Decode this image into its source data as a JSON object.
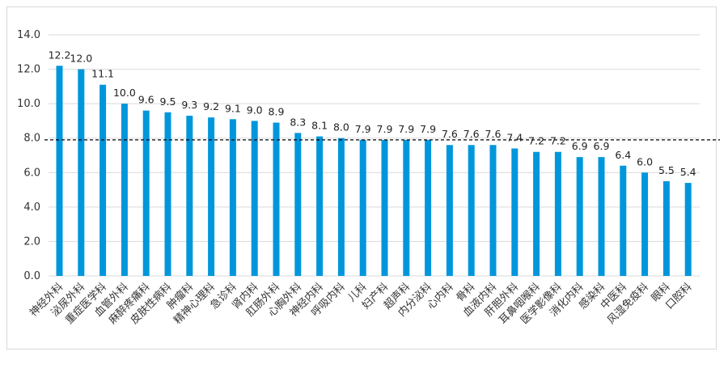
{
  "chart_data": {
    "type": "bar",
    "categories": [
      "神经外科",
      "泌尿外科",
      "重症医学科",
      "血管外科",
      "麻醉疼痛科",
      "皮肤性病科",
      "肿瘤科",
      "精神心理科",
      "急诊科",
      "肾内科",
      "肛肠外科",
      "心胸外科",
      "神经内科",
      "呼吸内科",
      "儿科",
      "妇产科",
      "超声科",
      "内分泌科",
      "心内科",
      "骨科",
      "血液内科",
      "肝胆外科",
      "耳鼻咽喉科",
      "医学影像科",
      "消化内科",
      "感染科",
      "中医科",
      "风湿免疫科",
      "眼科",
      "口腔科"
    ],
    "values": [
      12.2,
      12.0,
      11.1,
      10.0,
      9.6,
      9.5,
      9.3,
      9.2,
      9.1,
      9.0,
      8.9,
      8.3,
      8.1,
      8.0,
      7.9,
      7.9,
      7.9,
      7.9,
      7.6,
      7.6,
      7.6,
      7.4,
      7.2,
      7.2,
      6.9,
      6.9,
      6.4,
      6.0,
      5.5,
      5.4
    ],
    "data_labels": [
      "12.2",
      "12.0",
      "11.1",
      "10.0",
      "9.6",
      "9.5",
      "9.3",
      "9.2",
      "9.1",
      "9.0",
      "8.9",
      "8.3",
      "8.1",
      "8.0",
      "7.9",
      "7.9",
      "7.9",
      "7.9",
      "7.6",
      "7.6",
      "7.6",
      "7.4",
      "7.2",
      "7.2",
      "6.9",
      "6.9",
      "6.4",
      "6.0",
      "5.5",
      "5.4"
    ],
    "y_ticks": [
      "0.0",
      "2.0",
      "4.0",
      "6.0",
      "8.0",
      "10.0",
      "12.0",
      "14.0"
    ],
    "ylim": [
      0,
      14
    ],
    "reference_line": 7.9,
    "grid": true,
    "bar_color": "#0096DC",
    "grid_color": "#d9d9d9",
    "reference_line_color": "#000000"
  }
}
